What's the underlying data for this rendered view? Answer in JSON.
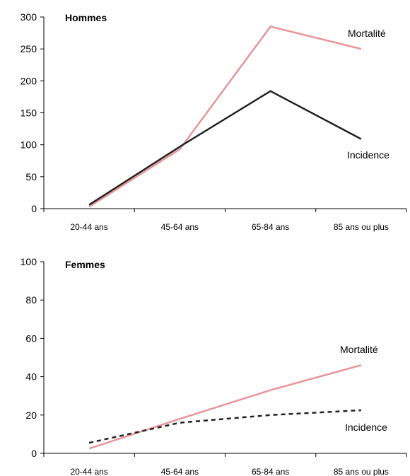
{
  "colors": {
    "mortalite": "#e8959a",
    "incidence": "#222222"
  },
  "chart_data": [
    {
      "type": "line",
      "title": "Hommes",
      "categories": [
        "20-44 ans",
        "45-64 ans",
        "65-84 ans",
        "85 ans ou plus"
      ],
      "ylim": [
        0,
        300
      ],
      "yticks": [
        "0",
        "50",
        "100",
        "150",
        "200",
        "250",
        "300"
      ],
      "series": [
        {
          "name": "Mortalité",
          "values": [
            3,
            93,
            285,
            250
          ],
          "color": "#e8959a",
          "style": "solid"
        },
        {
          "name": "Incidence",
          "values": [
            6,
            97,
            184,
            109
          ],
          "color": "#222222",
          "style": "solid"
        }
      ],
      "grid": false
    },
    {
      "type": "line",
      "title": "Femmes",
      "categories": [
        "20-44 ans",
        "45-64 ans",
        "65-84 ans",
        "85 ans ou plus"
      ],
      "ylim": [
        0,
        100
      ],
      "yticks": [
        "0",
        "20",
        "40",
        "60",
        "80",
        "100"
      ],
      "series": [
        {
          "name": "Mortalité",
          "values": [
            2.5,
            18,
            33,
            46
          ],
          "color": "#e8959a",
          "style": "solid"
        },
        {
          "name": "Incidence",
          "values": [
            5.5,
            16,
            20,
            22.5
          ],
          "color": "#222222",
          "style": "dashed"
        }
      ],
      "grid": false
    }
  ]
}
